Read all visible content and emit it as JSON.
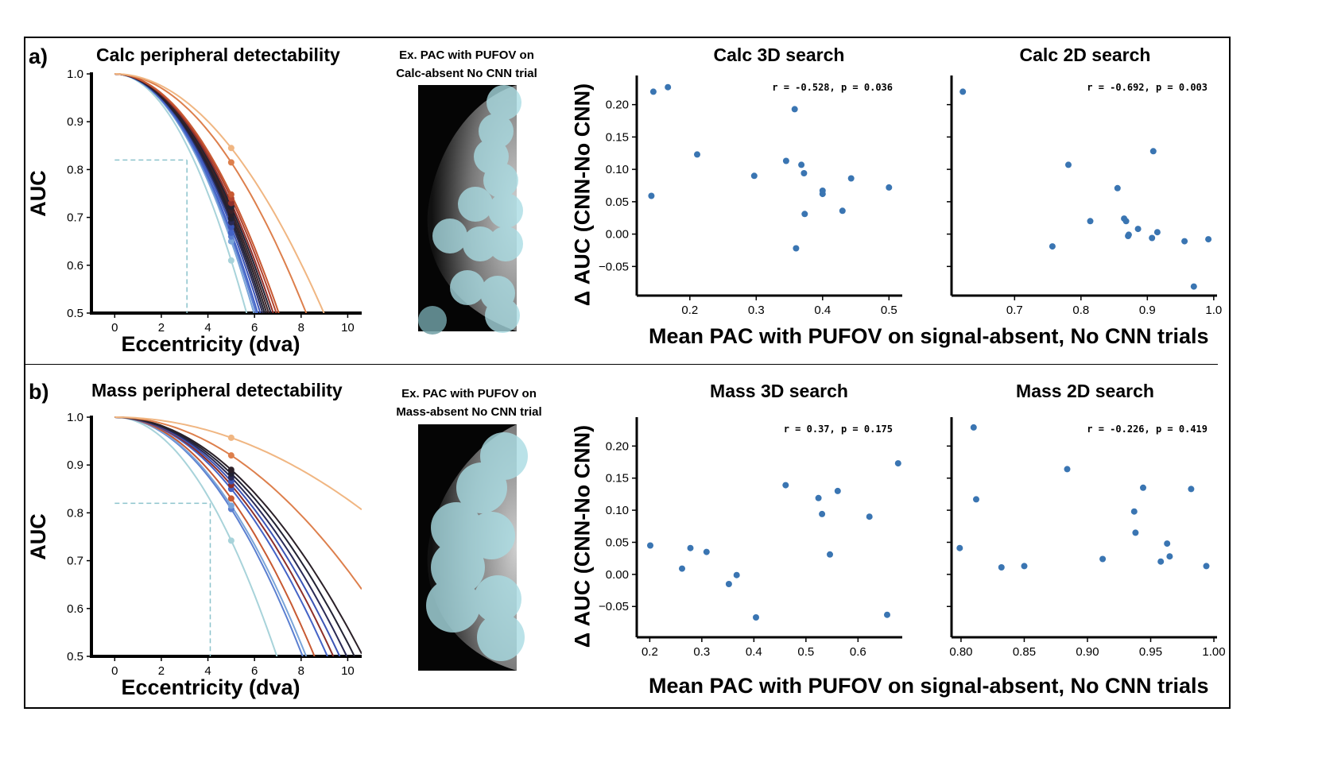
{
  "colors": {
    "point": "#3a75b2",
    "guide": "#8cc3cc",
    "mask": "#a9dce3",
    "curves_cool": [
      "#a8d3da",
      "#7aa4d8",
      "#5b7fd1",
      "#4463c7",
      "#3b54b5"
    ],
    "curves_dark": [
      "#2a2a55",
      "#222233",
      "#2a2028",
      "#3a2228"
    ],
    "curves_warm": [
      "#8e2f2a",
      "#b3432f",
      "#c85a33",
      "#dd7f4c",
      "#f0b682"
    ]
  },
  "rows": [
    {
      "letter": "a)",
      "curve_title": "Calc peripheral detectability",
      "example_title_l1": "Ex. PAC with PUFOV on",
      "example_title_l2": "Calc-absent No CNN trial",
      "xaxis_label": "Mean PAC with PUFOV on signal-absent, No CNN trials",
      "yaxis_label": "Δ AUC (CNN-No CNN)"
    },
    {
      "letter": "b)",
      "curve_title": "Mass peripheral detectability",
      "example_title_l1": "Ex. PAC with PUFOV on",
      "example_title_l2": "Mass-absent No CNN trial",
      "xaxis_label": "Mean PAC with PUFOV on signal-absent, No CNN trials",
      "yaxis_label": "Δ AUC (CNN-No CNN)"
    }
  ],
  "chart_data": [
    {
      "id": "calc_curves",
      "type": "line",
      "title": "Calc peripheral detectability",
      "xlabel": "Eccentricity (dva)",
      "ylabel": "AUC",
      "xlim": [
        -1,
        10.6
      ],
      "ylim": [
        0.5,
        1.0
      ],
      "xticks": [
        0,
        2,
        4,
        6,
        8,
        10
      ],
      "yticks": [
        1.0,
        0.9,
        0.8,
        0.7,
        0.6,
        0.5
      ],
      "marker_x": 5,
      "series": [
        {
          "p5": 0.61,
          "c": 0
        },
        {
          "p5": 0.65,
          "c": 1
        },
        {
          "p5": 0.66,
          "c": 2
        },
        {
          "p5": 0.668,
          "c": 3
        },
        {
          "p5": 0.68,
          "c": 4
        },
        {
          "p5": 0.69,
          "c": 5
        },
        {
          "p5": 0.698,
          "c": 6
        },
        {
          "p5": 0.706,
          "c": 7
        },
        {
          "p5": 0.714,
          "c": 8
        },
        {
          "p5": 0.722,
          "c": 6
        },
        {
          "p5": 0.73,
          "c": 9
        },
        {
          "p5": 0.74,
          "c": 10
        },
        {
          "p5": 0.748,
          "c": 11
        },
        {
          "p5": 0.815,
          "c": 12
        },
        {
          "p5": 0.845,
          "c": 13
        }
      ],
      "guide": {
        "y": 0.82,
        "x": 3.1
      }
    },
    {
      "id": "mass_curves",
      "type": "line",
      "title": "Mass peripheral detectability",
      "xlabel": "Eccentricity (dva)",
      "ylabel": "AUC",
      "xlim": [
        -1,
        10.6
      ],
      "ylim": [
        0.5,
        1.0
      ],
      "xticks": [
        0,
        2,
        4,
        6,
        8,
        10
      ],
      "yticks": [
        1.0,
        0.9,
        0.8,
        0.7,
        0.6,
        0.5
      ],
      "marker_x": 5,
      "series": [
        {
          "p5": 0.742,
          "c": 0
        },
        {
          "p5": 0.808,
          "c": 2
        },
        {
          "p5": 0.815,
          "c": 1
        },
        {
          "p5": 0.83,
          "c": 11
        },
        {
          "p5": 0.85,
          "c": 3
        },
        {
          "p5": 0.858,
          "c": 9
        },
        {
          "p5": 0.866,
          "c": 4
        },
        {
          "p5": 0.874,
          "c": 5
        },
        {
          "p5": 0.882,
          "c": 6
        },
        {
          "p5": 0.89,
          "c": 7
        },
        {
          "p5": 0.92,
          "c": 12
        },
        {
          "p5": 0.957,
          "c": 13
        }
      ],
      "guide": {
        "y": 0.82,
        "x": 4.1
      }
    },
    {
      "id": "calc3d",
      "type": "scatter",
      "title": "Calc 3D search",
      "annotation": "r = -0.528, p = 0.036",
      "xlim": [
        0.12,
        0.52
      ],
      "ylim": [
        -0.095,
        0.245
      ],
      "xticks": [
        0.2,
        0.3,
        0.4,
        0.5
      ],
      "xtick_labels": [
        "0.2",
        "0.3",
        "0.4",
        "0.5"
      ],
      "yticks": [
        0.2,
        0.15,
        0.1,
        0.05,
        0.0,
        -0.05
      ],
      "ytick_labels": [
        "0.20",
        "0.15",
        "0.10",
        "0.05",
        "0.00",
        "−0.05"
      ],
      "points": [
        [
          0.145,
          0.22
        ],
        [
          0.167,
          0.227
        ],
        [
          0.142,
          0.059
        ],
        [
          0.211,
          0.123
        ],
        [
          0.297,
          0.09
        ],
        [
          0.345,
          0.113
        ],
        [
          0.358,
          0.193
        ],
        [
          0.368,
          0.107
        ],
        [
          0.372,
          0.094
        ],
        [
          0.373,
          0.031
        ],
        [
          0.36,
          -0.022
        ],
        [
          0.4,
          0.067
        ],
        [
          0.4,
          0.062
        ],
        [
          0.43,
          0.036
        ],
        [
          0.443,
          0.086
        ],
        [
          0.5,
          0.072
        ]
      ]
    },
    {
      "id": "calc2d",
      "type": "scatter",
      "title": "Calc 2D search",
      "annotation": "r = -0.692, p = 0.003",
      "xlim": [
        0.605,
        1.005
      ],
      "ylim": [
        -0.095,
        0.245
      ],
      "xticks": [
        0.7,
        0.8,
        0.9,
        1.0
      ],
      "xtick_labels": [
        "0.7",
        "0.8",
        "0.9",
        "1.0"
      ],
      "yticks": [
        0.2,
        0.15,
        0.1,
        0.05,
        0.0,
        -0.05
      ],
      "ytick_labels": [
        "",
        "",
        "",
        "",
        "",
        ""
      ],
      "points": [
        [
          0.622,
          0.22
        ],
        [
          0.757,
          -0.019
        ],
        [
          0.781,
          0.107
        ],
        [
          0.814,
          0.02
        ],
        [
          0.855,
          0.071
        ],
        [
          0.865,
          0.024
        ],
        [
          0.868,
          0.02
        ],
        [
          0.871,
          -0.003
        ],
        [
          0.872,
          -0.001
        ],
        [
          0.886,
          0.008
        ],
        [
          0.907,
          -0.006
        ],
        [
          0.909,
          0.128
        ],
        [
          0.915,
          0.003
        ],
        [
          0.956,
          -0.011
        ],
        [
          0.97,
          -0.081
        ],
        [
          0.992,
          -0.008
        ]
      ]
    },
    {
      "id": "mass3d",
      "type": "scatter",
      "title": "Mass 3D search",
      "annotation": "r = 0.37, p = 0.175",
      "xlim": [
        0.175,
        0.685
      ],
      "ylim": [
        -0.098,
        0.245
      ],
      "xticks": [
        0.2,
        0.3,
        0.4,
        0.5,
        0.6
      ],
      "xtick_labels": [
        "0.2",
        "0.3",
        "0.4",
        "0.5",
        "0.6"
      ],
      "yticks": [
        0.2,
        0.15,
        0.1,
        0.05,
        0.0,
        -0.05
      ],
      "ytick_labels": [
        "0.20",
        "0.15",
        "0.10",
        "0.05",
        "0.00",
        "−0.05"
      ],
      "points": [
        [
          0.201,
          0.045
        ],
        [
          0.262,
          0.009
        ],
        [
          0.278,
          0.041
        ],
        [
          0.309,
          0.035
        ],
        [
          0.352,
          -0.015
        ],
        [
          0.367,
          -0.001
        ],
        [
          0.404,
          -0.067
        ],
        [
          0.461,
          0.139
        ],
        [
          0.524,
          0.119
        ],
        [
          0.531,
          0.094
        ],
        [
          0.546,
          0.031
        ],
        [
          0.561,
          0.13
        ],
        [
          0.622,
          0.09
        ],
        [
          0.656,
          -0.063
        ],
        [
          0.677,
          0.173
        ]
      ]
    },
    {
      "id": "mass2d",
      "type": "scatter",
      "title": "Mass 2D search",
      "annotation": "r = -0.226, p = 0.419",
      "xlim": [
        0.7925,
        1.0025
      ],
      "ylim": [
        -0.098,
        0.245
      ],
      "xticks": [
        0.8,
        0.85,
        0.9,
        0.95,
        1.0
      ],
      "xtick_labels": [
        "0.80",
        "0.85",
        "0.90",
        "0.95",
        "1.00"
      ],
      "yticks": [
        0.2,
        0.15,
        0.1,
        0.05,
        0.0,
        -0.05
      ],
      "ytick_labels": [
        "",
        "",
        "",
        "",
        "",
        ""
      ],
      "points": [
        [
          0.799,
          0.041
        ],
        [
          0.81,
          0.229
        ],
        [
          0.812,
          0.117
        ],
        [
          0.832,
          0.011
        ],
        [
          0.85,
          0.013
        ],
        [
          0.884,
          0.164
        ],
        [
          0.912,
          0.024
        ],
        [
          0.937,
          0.098
        ],
        [
          0.938,
          0.065
        ],
        [
          0.944,
          0.135
        ],
        [
          0.958,
          0.02
        ],
        [
          0.963,
          0.048
        ],
        [
          0.965,
          0.028
        ],
        [
          0.982,
          0.133
        ],
        [
          0.994,
          0.013
        ]
      ]
    }
  ]
}
